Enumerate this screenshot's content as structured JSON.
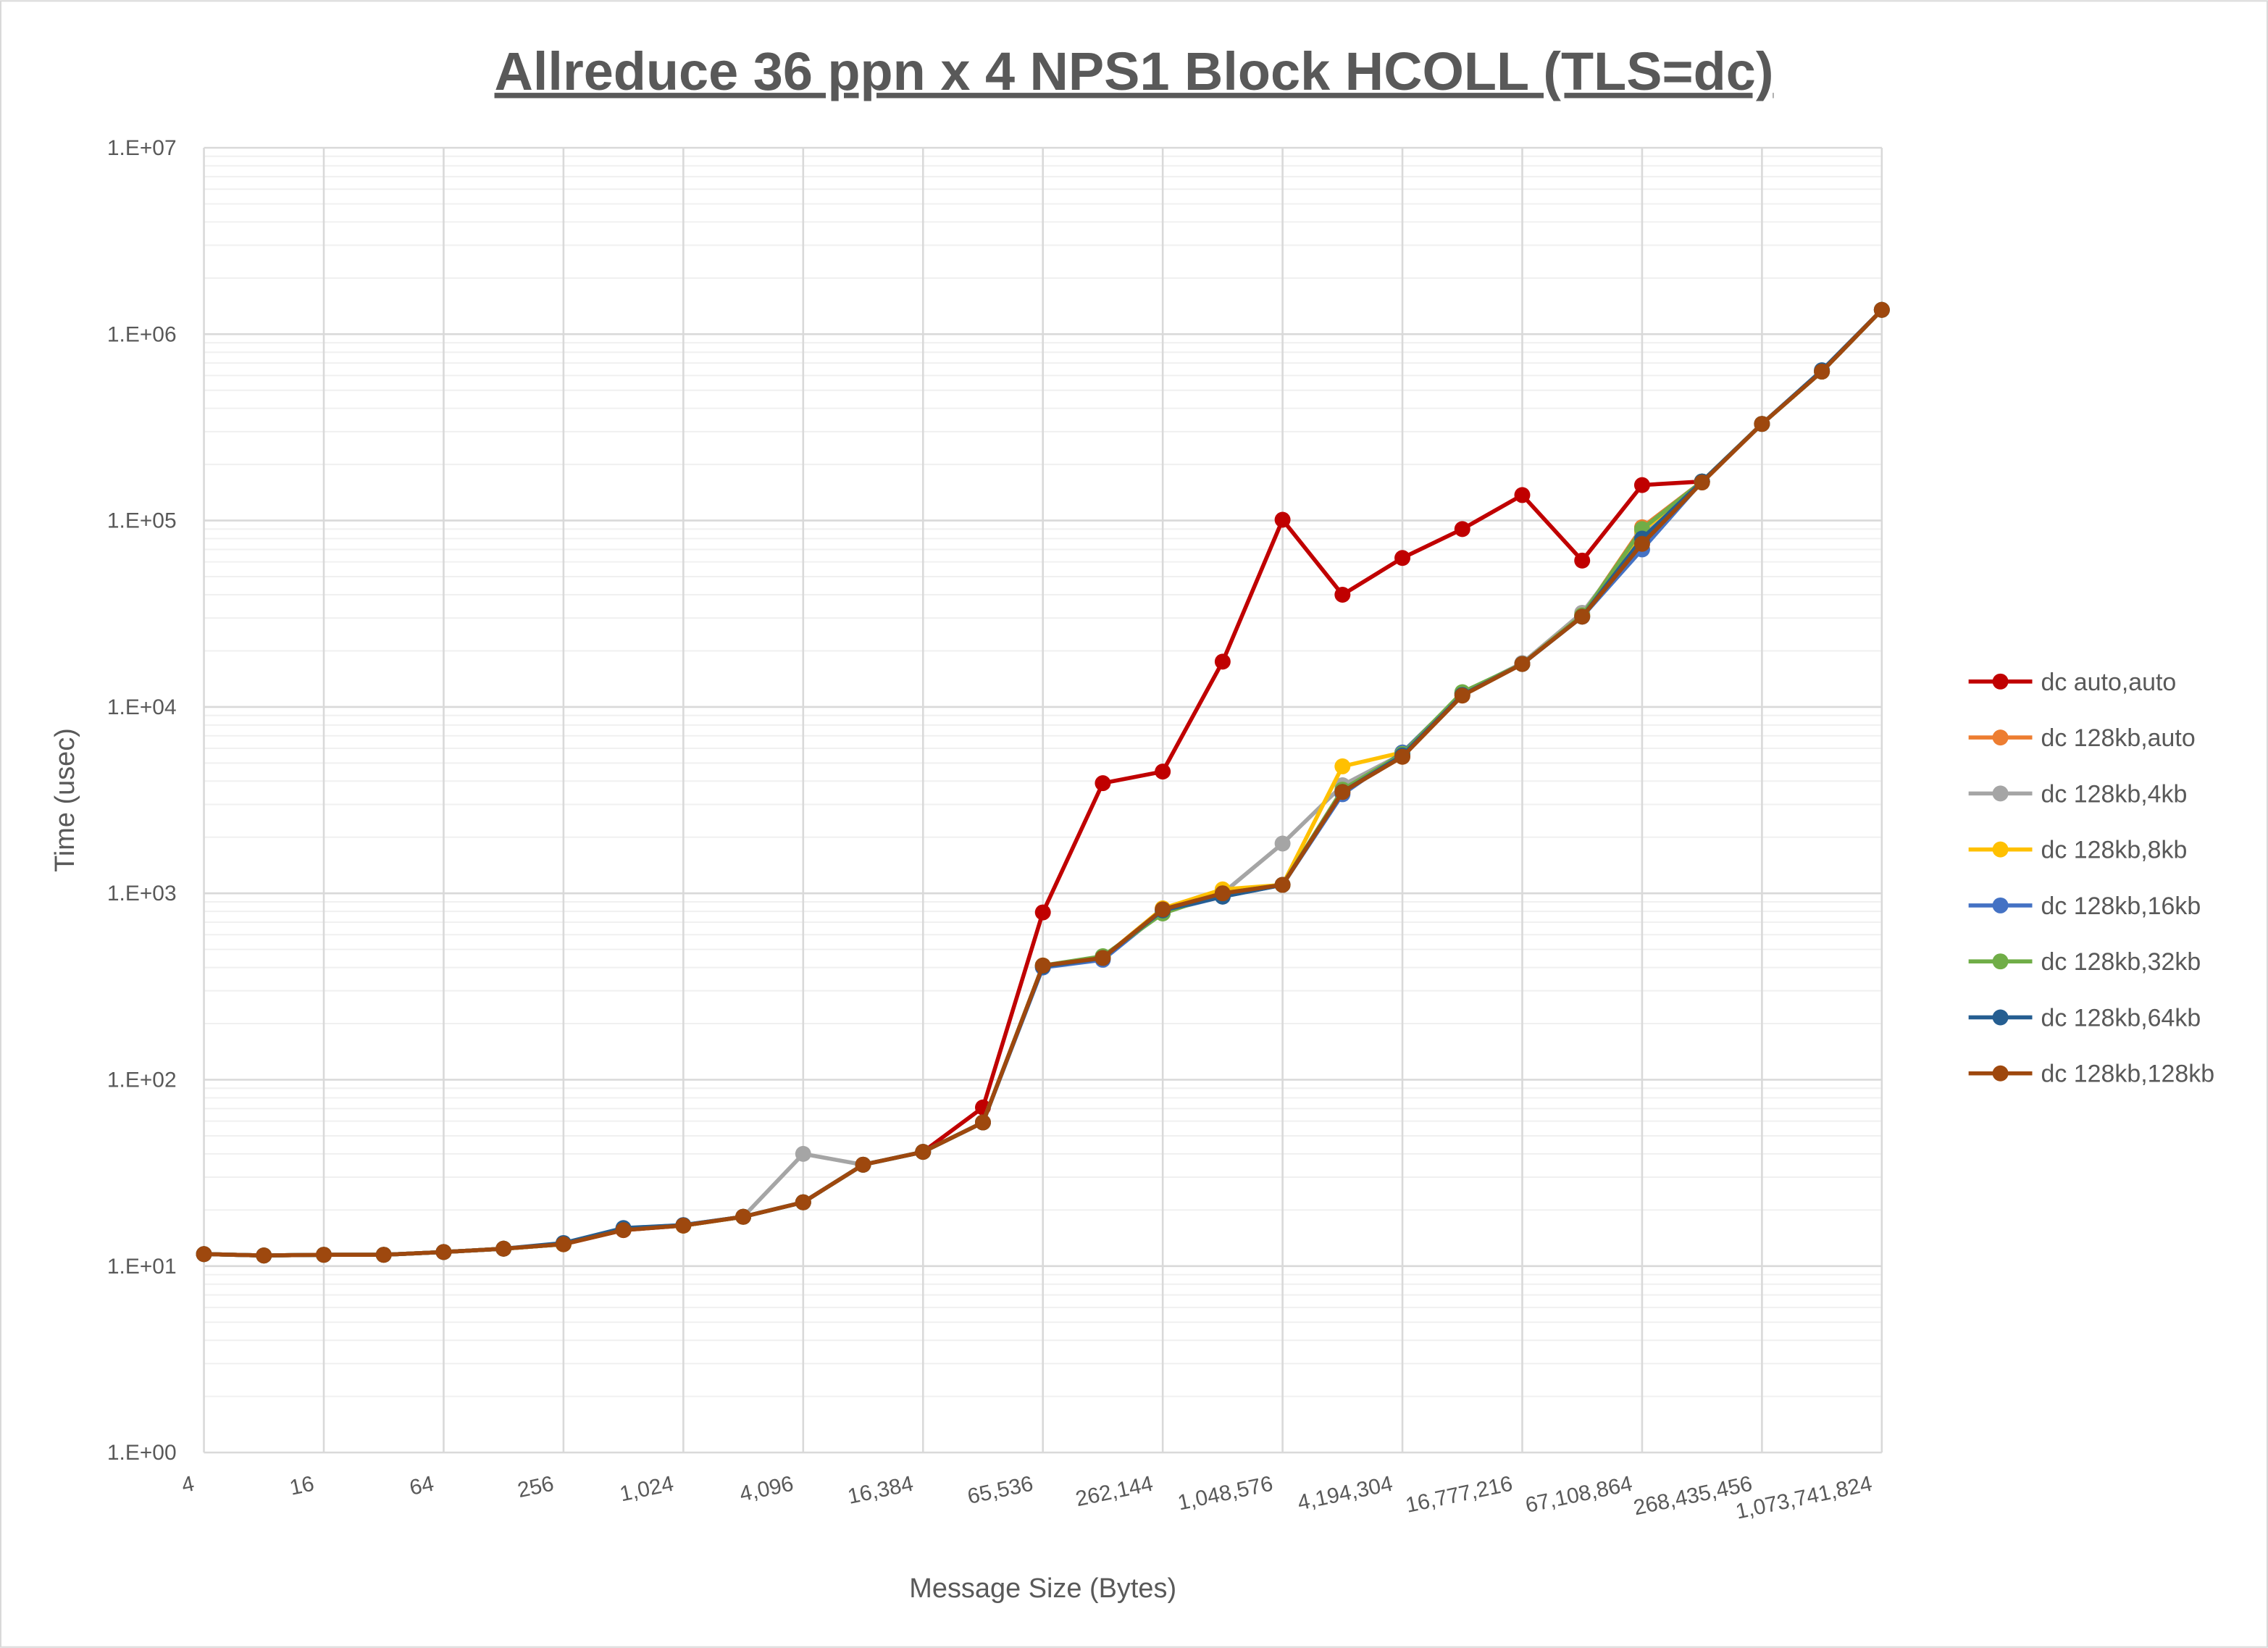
{
  "chart_data": {
    "type": "line",
    "title": "Allreduce 36 ppn x 4 NPS1 Block HCOLL (TLS=dc)",
    "xlabel": "Message Size (Bytes)",
    "ylabel": "Time (usec)",
    "x_scale": "log2",
    "y_scale": "log10",
    "xlim": [
      4,
      1073741824
    ],
    "ylim": [
      1,
      10000000
    ],
    "grid": true,
    "legend_position": "right",
    "x_tick_labels": [
      "4",
      "16",
      "64",
      "256",
      "1,024",
      "4,096",
      "16,384",
      "65,536",
      "262,144",
      "1,048,576",
      "4,194,304",
      "16,777,216",
      "67,108,864",
      "268,435,456",
      "1,073,741,824"
    ],
    "y_tick_labels": [
      "1.E+00",
      "1.E+01",
      "1.E+02",
      "1.E+03",
      "1.E+04",
      "1.E+05",
      "1.E+06",
      "1.E+07"
    ],
    "x": [
      4,
      8,
      16,
      32,
      64,
      128,
      256,
      512,
      1024,
      2048,
      4096,
      8192,
      16384,
      32768,
      65536,
      131072,
      262144,
      524288,
      1048576,
      2097152,
      4194304,
      8388608,
      16777216,
      33554432,
      67108864,
      134217728,
      268435456,
      536870912,
      1073741824
    ],
    "series": [
      {
        "name": "dc auto,auto",
        "color": "#C00000",
        "values": [
          11.6,
          11.4,
          11.5,
          11.5,
          11.9,
          12.4,
          13.1,
          15.6,
          16.5,
          18.4,
          22,
          35,
          41,
          71,
          790,
          3900,
          4500,
          17500,
          101000,
          40000,
          63000,
          90000,
          137000,
          61000,
          155000,
          162000,
          330000,
          630000,
          1350000
        ]
      },
      {
        "name": "dc 128kb,auto",
        "color": "#ED7D31",
        "values": [
          11.6,
          11.4,
          11.5,
          11.5,
          11.9,
          12.4,
          13.1,
          15.8,
          16.5,
          18.4,
          22,
          35,
          41,
          59,
          410,
          450,
          830,
          1020,
          1110,
          3600,
          5600,
          11800,
          17000,
          31000,
          92000,
          162000,
          330000,
          630000,
          1350000
        ]
      },
      {
        "name": "dc 128kb,4kb",
        "color": "#A5A5A5",
        "values": [
          11.6,
          11.4,
          11.5,
          11.5,
          11.9,
          12.4,
          13.1,
          15.8,
          16.5,
          18.4,
          40,
          35,
          41,
          59,
          410,
          450,
          820,
          1000,
          1850,
          3800,
          5600,
          11800,
          17200,
          32000,
          85000,
          162000,
          330000,
          630000,
          1350000
        ]
      },
      {
        "name": "dc 128kb,8kb",
        "color": "#FFC000",
        "values": [
          11.6,
          11.4,
          11.5,
          11.5,
          11.9,
          12.4,
          13.1,
          15.8,
          16.5,
          18.4,
          22,
          35,
          41,
          59,
          410,
          450,
          830,
          1050,
          1110,
          4800,
          5700,
          11800,
          17000,
          31000,
          88000,
          162000,
          330000,
          630000,
          1350000
        ]
      },
      {
        "name": "dc 128kb,16kb",
        "color": "#4472C4",
        "values": [
          11.6,
          11.4,
          11.5,
          11.5,
          11.9,
          12.4,
          13.2,
          15.9,
          16.6,
          18.4,
          22,
          35,
          41,
          59,
          400,
          440,
          800,
          960,
          1110,
          3400,
          5700,
          11800,
          17000,
          30500,
          70000,
          162000,
          330000,
          630000,
          1350000
        ]
      },
      {
        "name": "dc 128kb,32kb",
        "color": "#70AD47",
        "values": [
          11.6,
          11.4,
          11.5,
          11.5,
          11.9,
          12.4,
          13.1,
          15.8,
          16.5,
          18.4,
          22,
          35,
          41,
          59,
          410,
          460,
          780,
          1000,
          1110,
          3600,
          5600,
          12000,
          17000,
          31000,
          90000,
          162000,
          330000,
          630000,
          1350000
        ]
      },
      {
        "name": "dc 128kb,64kb",
        "color": "#255E91",
        "values": [
          11.6,
          11.4,
          11.5,
          11.5,
          11.9,
          12.4,
          13.3,
          16.0,
          16.6,
          18.4,
          22,
          35,
          41,
          59,
          405,
          450,
          810,
          960,
          1110,
          3500,
          5500,
          11600,
          17000,
          30500,
          80000,
          162000,
          330000,
          640000,
          1350000
        ]
      },
      {
        "name": "dc 128kb,128kb",
        "color": "#9E480E",
        "values": [
          11.6,
          11.4,
          11.5,
          11.5,
          11.9,
          12.4,
          13.1,
          15.6,
          16.5,
          18.4,
          22,
          35,
          41,
          59,
          410,
          450,
          820,
          1000,
          1110,
          3500,
          5400,
          11500,
          17000,
          30500,
          75000,
          160000,
          330000,
          630000,
          1350000
        ]
      }
    ]
  }
}
